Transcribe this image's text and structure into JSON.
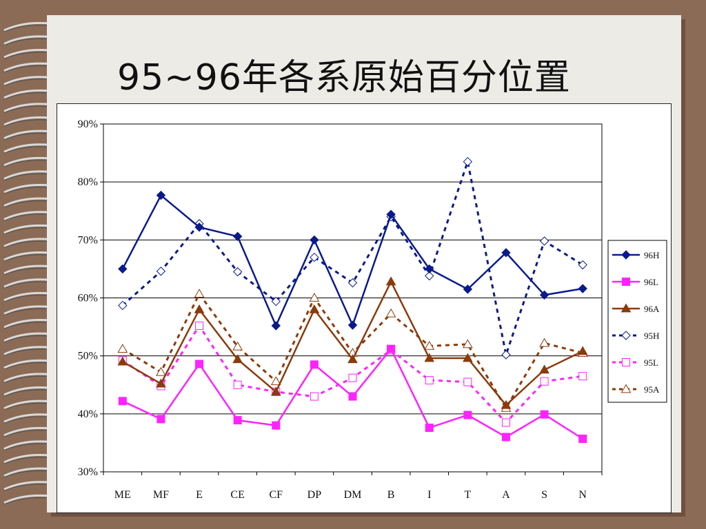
{
  "title": "95~96年各系原始百分位置",
  "chart_data": {
    "type": "line",
    "categories": [
      "ME",
      "MF",
      "E",
      "CE",
      "CF",
      "DP",
      "DM",
      "B",
      "I",
      "T",
      "A",
      "S",
      "N"
    ],
    "y_ticks": [
      "30%",
      "40%",
      "50%",
      "60%",
      "70%",
      "80%",
      "90%"
    ],
    "ylim": [
      30,
      90
    ],
    "y_unit": "percent",
    "grid": "horizontal",
    "legend_position": "right",
    "series": [
      {
        "name": "96H",
        "color": "#0a1a8c",
        "style": "solid",
        "marker": "diamond",
        "values": [
          65.0,
          77.7,
          72.2,
          70.6,
          55.2,
          70.0,
          55.3,
          74.4,
          65.0,
          61.5,
          67.8,
          60.5,
          61.6
        ]
      },
      {
        "name": "96L",
        "color": "#ff22ff",
        "style": "solid",
        "marker": "square",
        "values": [
          42.2,
          39.1,
          48.6,
          38.9,
          38.0,
          48.5,
          43.0,
          51.2,
          37.6,
          39.8,
          36.0,
          39.9,
          35.7
        ]
      },
      {
        "name": "96A",
        "color": "#8b3a0a",
        "style": "solid",
        "marker": "triangle",
        "values": [
          49.0,
          45.2,
          58.0,
          49.4,
          43.8,
          58.0,
          49.4,
          62.8,
          49.6,
          49.6,
          41.5,
          47.6,
          50.8
        ]
      },
      {
        "name": "95H",
        "color": "#0a1a8c",
        "style": "dashed",
        "marker": "diamond-open",
        "values": [
          58.7,
          64.6,
          72.8,
          64.5,
          59.4,
          67.0,
          62.6,
          74.0,
          63.8,
          83.5,
          50.2,
          69.8,
          65.7
        ]
      },
      {
        "name": "95L",
        "color": "#ff22ff",
        "style": "dashed",
        "marker": "square-open",
        "values": [
          49.2,
          44.8,
          55.2,
          45.0,
          43.8,
          43.0,
          46.2,
          51.0,
          45.8,
          45.5,
          38.5,
          45.6,
          46.5
        ]
      },
      {
        "name": "95A",
        "color": "#8b3a0a",
        "style": "dashed",
        "marker": "triangle-open",
        "values": [
          51.2,
          47.2,
          60.7,
          51.6,
          45.6,
          60.0,
          50.5,
          57.3,
          51.7,
          52.0,
          41.0,
          52.2,
          50.5
        ]
      }
    ]
  }
}
